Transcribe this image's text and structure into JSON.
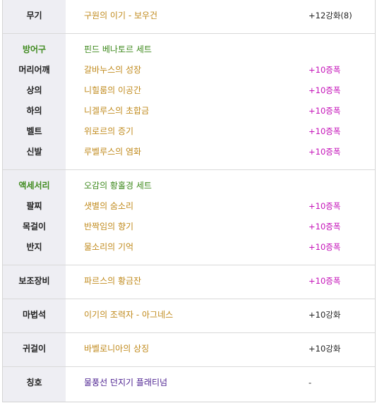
{
  "weapon": {
    "label": "무기",
    "name": "구원의 이기 - 보우건",
    "stat": "+12강화(8)"
  },
  "armor": {
    "category_label": "방어구",
    "set_name": "핀드 베나토르 세트",
    "items": [
      {
        "label": "머리어깨",
        "name": "갈바누스의 성장",
        "stat": "+10증폭"
      },
      {
        "label": "상의",
        "name": "니힐룸의 이공간",
        "stat": "+10증폭"
      },
      {
        "label": "하의",
        "name": "니겔루스의 초합금",
        "stat": "+10증폭"
      },
      {
        "label": "벨트",
        "name": "위로르의 증기",
        "stat": "+10증폭"
      },
      {
        "label": "신발",
        "name": "루벨루스의 염화",
        "stat": "+10증폭"
      }
    ]
  },
  "accessory": {
    "category_label": "액세서리",
    "set_name": "오감의 황홀경 세트",
    "items": [
      {
        "label": "팔찌",
        "name": "샛별의 숨소리",
        "stat": "+10증폭"
      },
      {
        "label": "목걸이",
        "name": "반짝임의 향기",
        "stat": "+10증폭"
      },
      {
        "label": "반지",
        "name": "물소리의 기억",
        "stat": "+10증폭"
      }
    ]
  },
  "sub_equipment": {
    "label": "보조장비",
    "name": "파르스의 황금잔",
    "stat": "+10증폭"
  },
  "magic_stone": {
    "label": "마법석",
    "name": "이기의 조력자 - 아그네스",
    "stat": "+10강화"
  },
  "earring": {
    "label": "귀걸이",
    "name": "바벨로니아의 상징",
    "stat": "+10강화"
  },
  "title": {
    "label": "칭호",
    "name": "물풍선 던지기 플래티넘",
    "stat": "-"
  },
  "colors": {
    "category_green": "#3f8a1e",
    "item_gold": "#c08a1c",
    "amplify_magenta": "#c412b8",
    "title_purple": "#4b1f8f",
    "label_bg": "#eeeef3"
  }
}
